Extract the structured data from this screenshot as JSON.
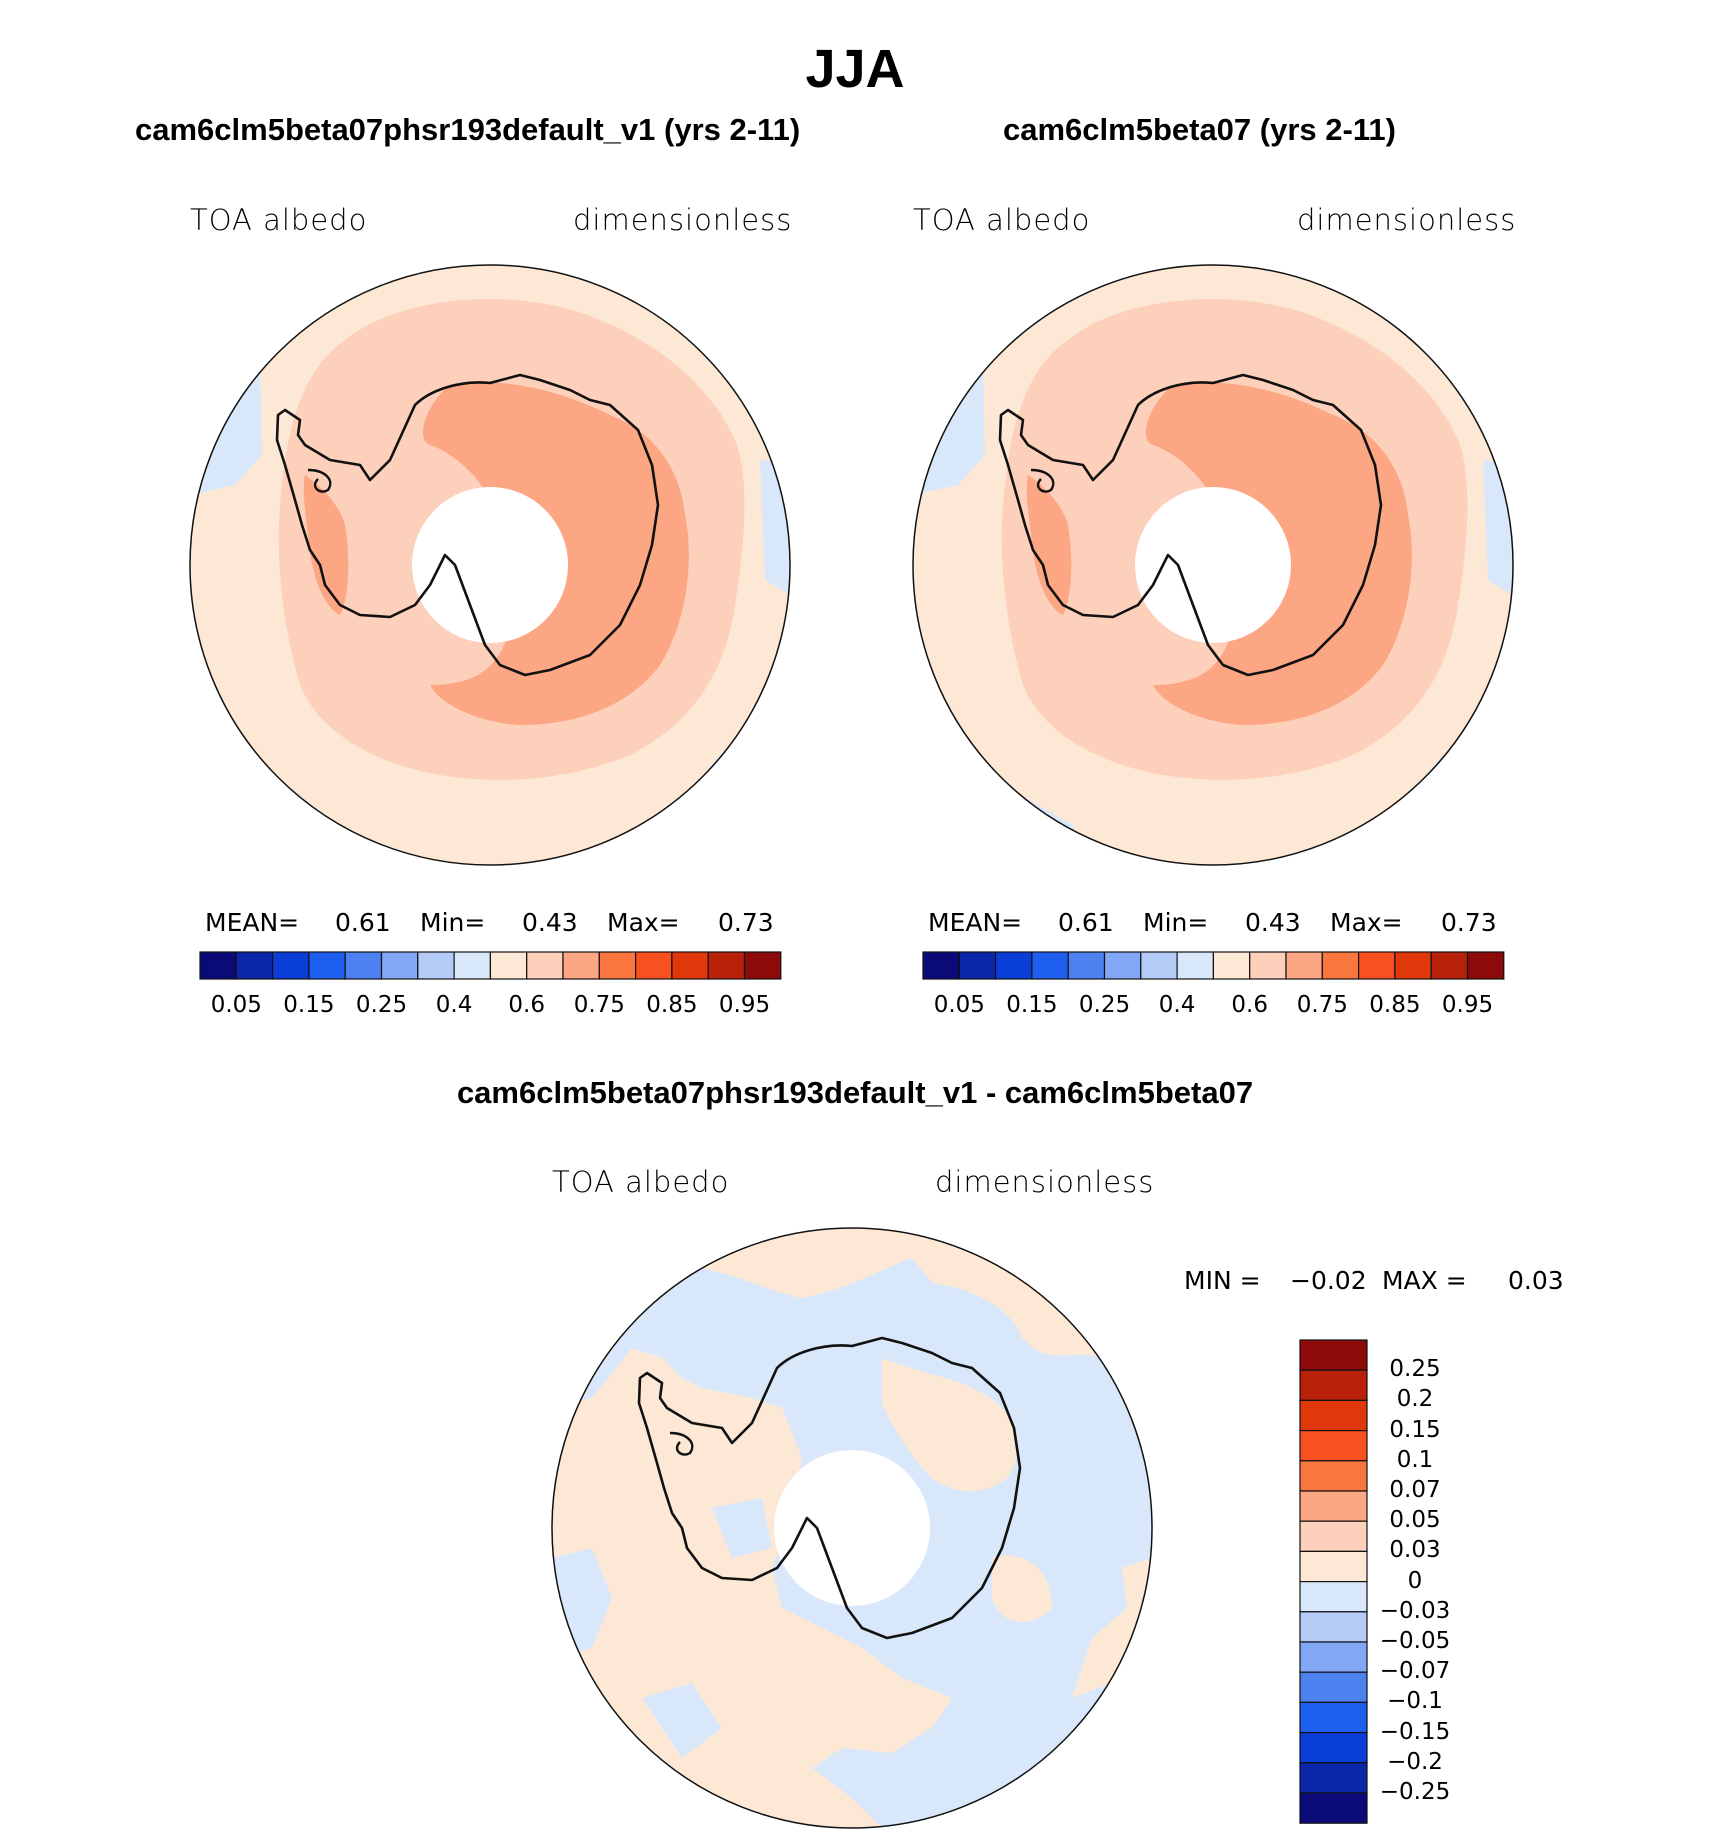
{
  "title": "JJA",
  "panels": {
    "left": {
      "title": "cam6clm5beta07phsr193default_v1 (yrs 2-11)",
      "variable": "TOA albedo",
      "units": "dimensionless",
      "stats": {
        "mean_label": "MEAN=",
        "mean": "0.61",
        "min_label": "Min=",
        "min": "0.43",
        "max_label": "Max=",
        "max": "0.73"
      }
    },
    "right": {
      "title": "cam6clm5beta07 (yrs 2-11)",
      "variable": "TOA albedo",
      "units": "dimensionless",
      "stats": {
        "mean_label": "MEAN=",
        "mean": "0.61",
        "min_label": "Min=",
        "min": "0.43",
        "max_label": "Max=",
        "max": "0.73"
      }
    },
    "diff": {
      "title": "cam6clm5beta07phsr193default_v1 - cam6clm5beta07",
      "variable": "TOA albedo",
      "units": "dimensionless",
      "stats": {
        "min_label": "MIN =",
        "min": "−0.02",
        "max_label": "MAX =",
        "max": "0.03"
      }
    }
  },
  "colorbar_main": {
    "colors": [
      "#0a0a78",
      "#0b26a8",
      "#0a3ed8",
      "#1f5ff0",
      "#4d81f0",
      "#82a8f5",
      "#b4cbf8",
      "#d8e8fa",
      "#fde8d6",
      "#fcd0ba",
      "#fca683",
      "#f9773f",
      "#f95020",
      "#e0380a",
      "#b8200a",
      "#8c0a0a"
    ],
    "tick_labels": [
      "0.05",
      "0.15",
      "0.25",
      "0.4",
      "0.6",
      "0.75",
      "0.85",
      "0.95"
    ]
  },
  "colorbar_diff": {
    "colors": [
      "#8c0a0a",
      "#b8200a",
      "#e0380a",
      "#f95020",
      "#f9773f",
      "#fca683",
      "#fcd0ba",
      "#fde8d6",
      "#d8e8fa",
      "#b4cbf8",
      "#82a8f5",
      "#4d81f0",
      "#1f5ff0",
      "#0a3ed8",
      "#0b26a8",
      "#0a0a78"
    ],
    "tick_labels": [
      "0.25",
      "0.2",
      "0.15",
      "0.1",
      "0.07",
      "0.05",
      "0.03",
      "0",
      "−0.03",
      "−0.05",
      "−0.07",
      "−0.1",
      "−0.15",
      "−0.2",
      "−0.25"
    ]
  },
  "map_colors": {
    "outer_band": "#fde8d6",
    "mid_band": "#fcd0ba",
    "inner_band": "#fca683",
    "negative": "#d8e8fa",
    "coast": "#111111"
  }
}
